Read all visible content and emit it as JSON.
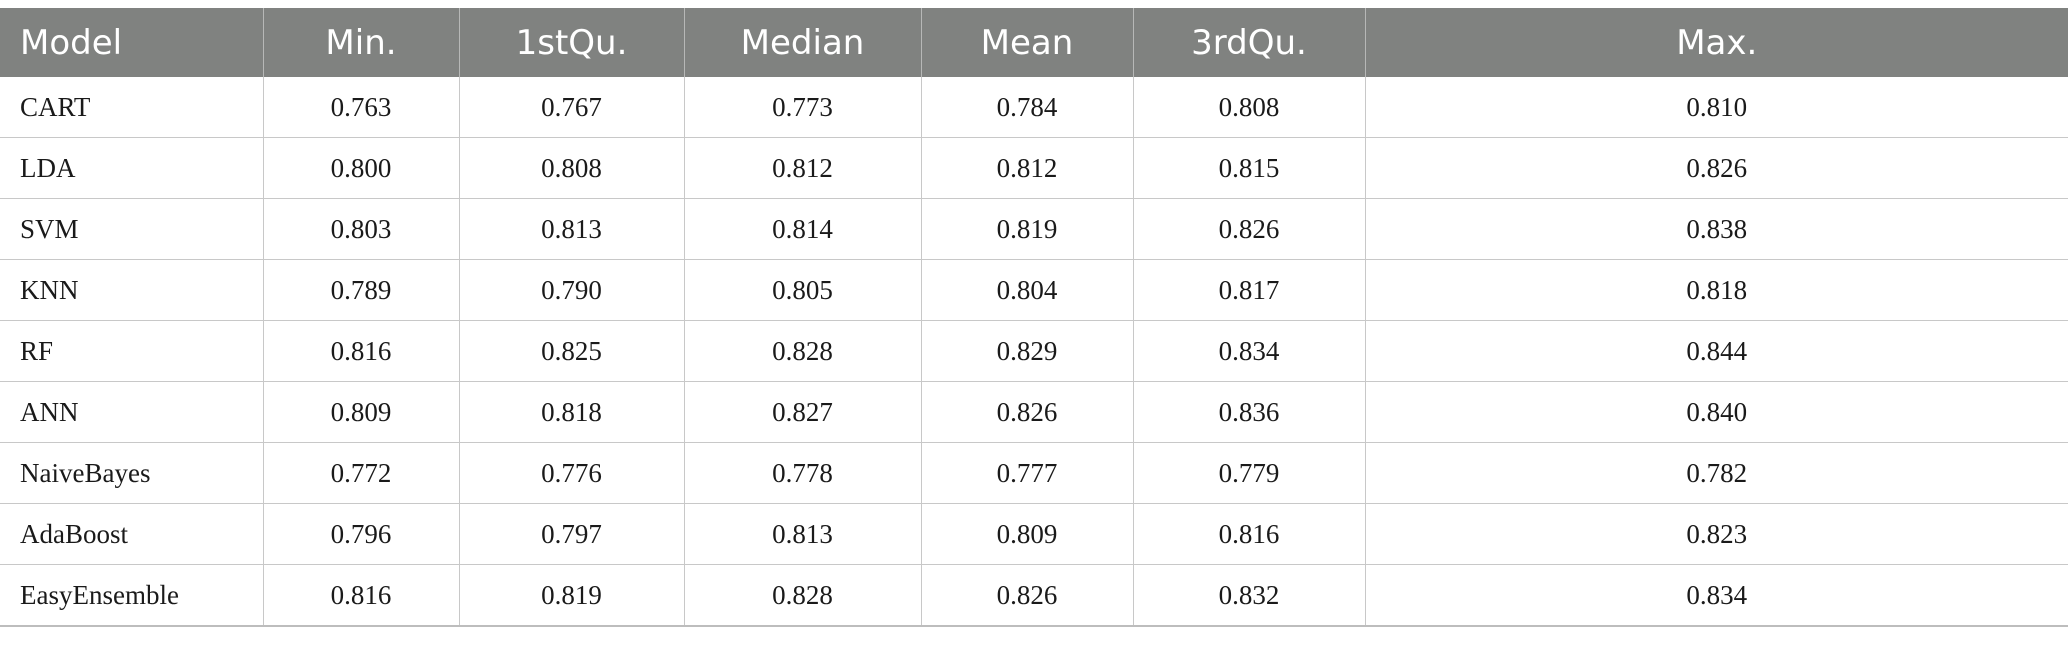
{
  "table": {
    "columns": [
      "Model",
      "Min.",
      "1stQu.",
      "Median",
      "Mean",
      "3rdQu.",
      "Max."
    ],
    "rows": [
      [
        "CART",
        "0.763",
        "0.767",
        "0.773",
        "0.784",
        "0.808",
        "0.810"
      ],
      [
        "LDA",
        "0.800",
        "0.808",
        "0.812",
        "0.812",
        "0.815",
        "0.826"
      ],
      [
        "SVM",
        "0.803",
        "0.813",
        "0.814",
        "0.819",
        "0.826",
        "0.838"
      ],
      [
        "KNN",
        "0.789",
        "0.790",
        "0.805",
        "0.804",
        "0.817",
        "0.818"
      ],
      [
        "RF",
        "0.816",
        "0.825",
        "0.828",
        "0.829",
        "0.834",
        "0.844"
      ],
      [
        "ANN",
        "0.809",
        "0.818",
        "0.827",
        "0.826",
        "0.836",
        "0.840"
      ],
      [
        "NaiveBayes",
        "0.772",
        "0.776",
        "0.778",
        "0.777",
        "0.779",
        "0.782"
      ],
      [
        "AdaBoost",
        "0.796",
        "0.797",
        "0.813",
        "0.809",
        "0.816",
        "0.823"
      ],
      [
        "EasyEnsemble",
        "0.816",
        "0.819",
        "0.828",
        "0.826",
        "0.832",
        "0.834"
      ]
    ]
  }
}
